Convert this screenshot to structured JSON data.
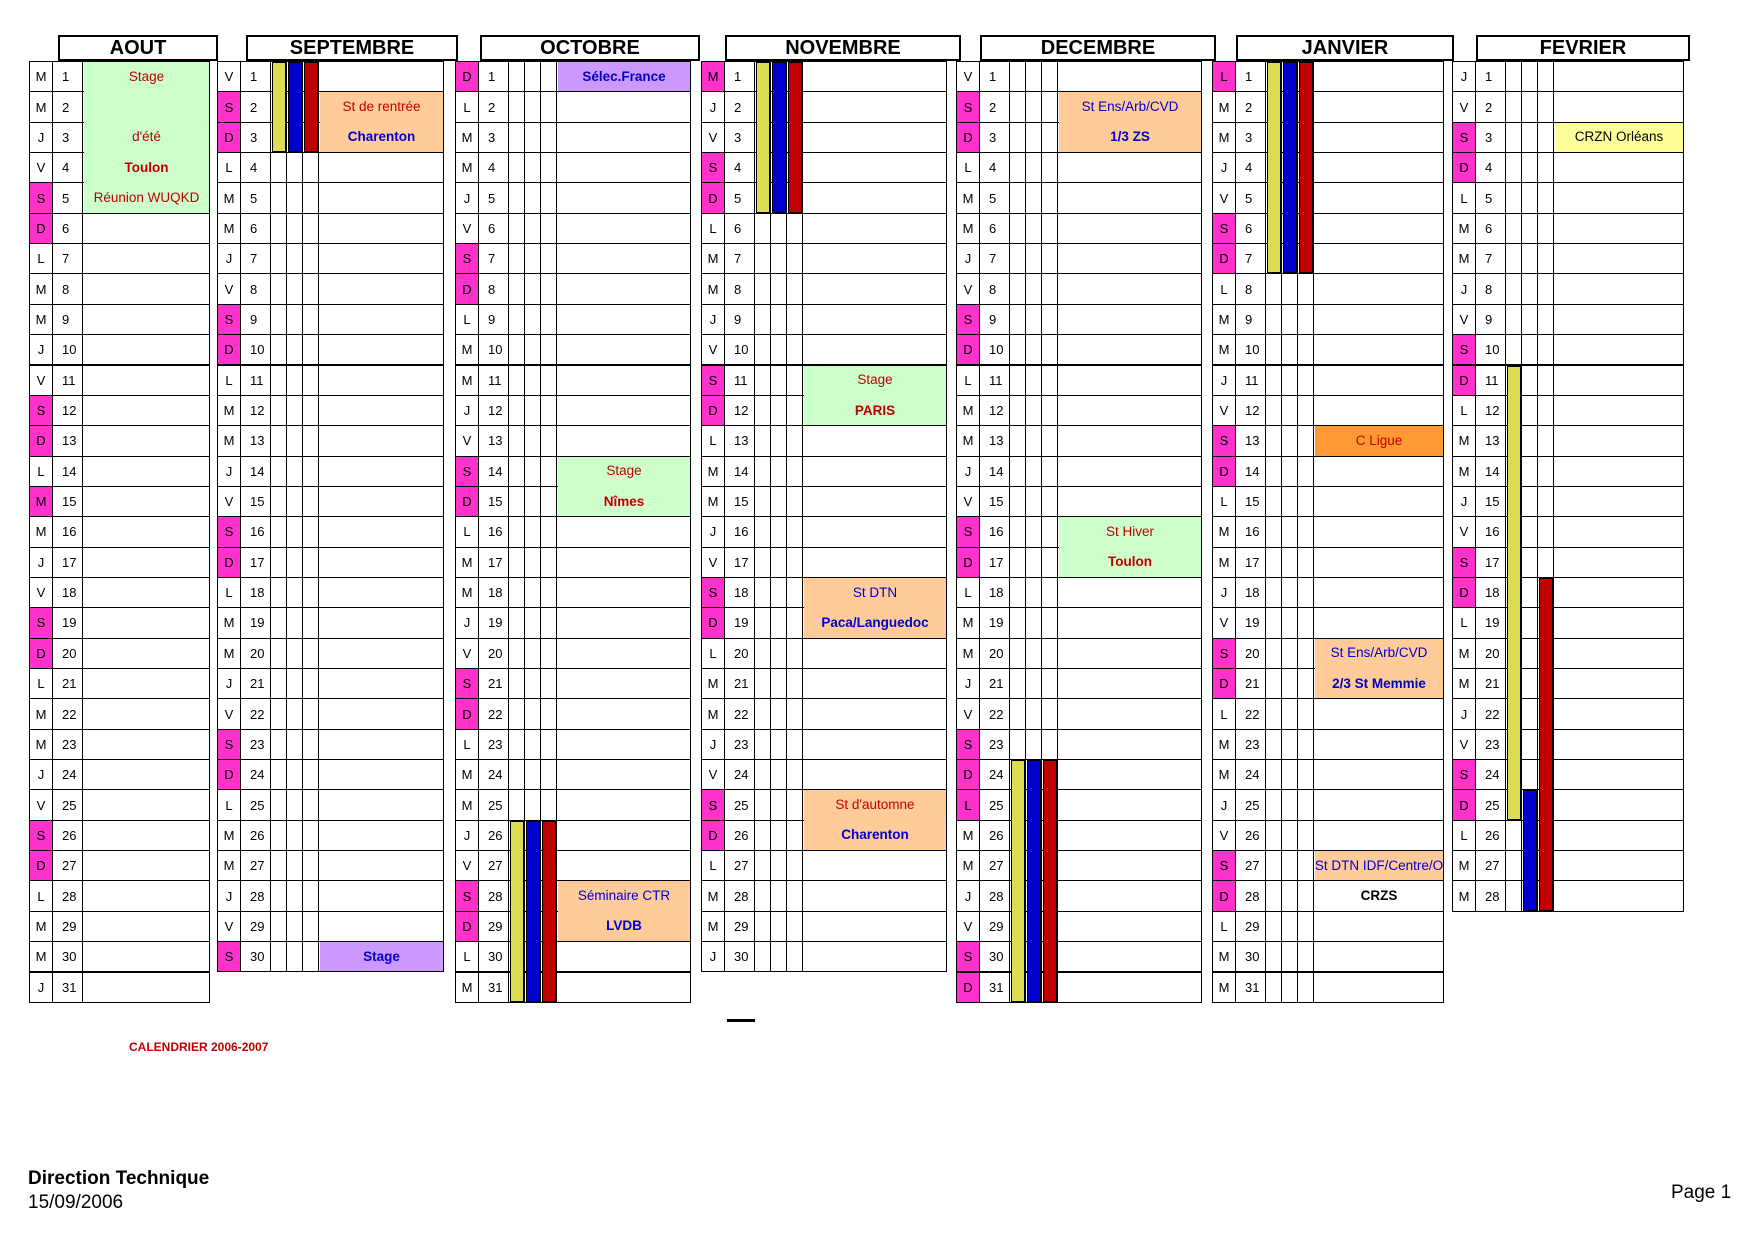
{
  "calendar_title": "CALENDRIER 2006-2007",
  "footer": {
    "org": "Direction Technique",
    "date": "15/09/2006",
    "page": "Page 1"
  },
  "colors": {
    "weekend": "#ff33cc",
    "green": "#ccffcc",
    "orange": "#ffcc99",
    "violet": "#cc99ff",
    "darkOrange": "#ff9933",
    "yellow": "#ffff99",
    "barYellow": "#dddd55",
    "barBlue": "#0000cc",
    "barRed": "#c00000"
  },
  "months": [
    {
      "name": "AOUT",
      "days": [
        "M",
        "M",
        "J",
        "V",
        "S",
        "D",
        "L",
        "M",
        "M",
        "J",
        "V",
        "S",
        "D",
        "L",
        "M",
        "M",
        "J",
        "V",
        "S",
        "D",
        "L",
        "M",
        "M",
        "J",
        "V",
        "S",
        "D",
        "L",
        "M",
        "M",
        "J"
      ]
    },
    {
      "name": "SEPTEMBRE",
      "days": [
        "V",
        "S",
        "D",
        "L",
        "M",
        "M",
        "J",
        "V",
        "S",
        "D",
        "L",
        "M",
        "M",
        "J",
        "V",
        "S",
        "D",
        "L",
        "M",
        "M",
        "J",
        "V",
        "S",
        "D",
        "L",
        "M",
        "M",
        "J",
        "V",
        "S"
      ]
    },
    {
      "name": "OCTOBRE",
      "days": [
        "D",
        "L",
        "M",
        "M",
        "J",
        "V",
        "S",
        "D",
        "L",
        "M",
        "M",
        "J",
        "V",
        "S",
        "D",
        "L",
        "M",
        "M",
        "J",
        "V",
        "S",
        "D",
        "L",
        "M",
        "M",
        "J",
        "V",
        "S",
        "D",
        "L",
        "M"
      ]
    },
    {
      "name": "NOVEMBRE",
      "days": [
        "M",
        "J",
        "V",
        "S",
        "D",
        "L",
        "M",
        "M",
        "J",
        "V",
        "S",
        "D",
        "L",
        "M",
        "M",
        "J",
        "V",
        "S",
        "D",
        "L",
        "M",
        "M",
        "J",
        "V",
        "S",
        "D",
        "L",
        "M",
        "M",
        "J"
      ]
    },
    {
      "name": "DECEMBRE",
      "days": [
        "V",
        "S",
        "D",
        "L",
        "M",
        "M",
        "J",
        "V",
        "S",
        "D",
        "L",
        "M",
        "M",
        "J",
        "V",
        "S",
        "D",
        "L",
        "M",
        "M",
        "J",
        "V",
        "S",
        "D",
        "L",
        "M",
        "M",
        "J",
        "V",
        "S",
        "D"
      ]
    },
    {
      "name": "JANVIER",
      "days": [
        "L",
        "M",
        "M",
        "J",
        "V",
        "S",
        "D",
        "L",
        "M",
        "M",
        "J",
        "V",
        "S",
        "D",
        "L",
        "M",
        "M",
        "J",
        "V",
        "S",
        "D",
        "L",
        "M",
        "M",
        "J",
        "V",
        "S",
        "D",
        "L",
        "M",
        "M"
      ]
    },
    {
      "name": "FEVRIER",
      "days": [
        "J",
        "V",
        "S",
        "D",
        "L",
        "M",
        "M",
        "J",
        "V",
        "S",
        "D",
        "L",
        "M",
        "M",
        "J",
        "V",
        "S",
        "D",
        "L",
        "M",
        "M",
        "J",
        "V",
        "S",
        "D",
        "L",
        "M",
        "M"
      ]
    }
  ],
  "highlighted_days": [
    {
      "month": 0,
      "days": [
        5,
        6,
        12,
        13,
        15,
        19,
        20,
        26,
        27
      ]
    },
    {
      "month": 1,
      "days": [
        2,
        3,
        9,
        10,
        16,
        17,
        23,
        24,
        30
      ]
    },
    {
      "month": 2,
      "days": [
        1,
        7,
        8,
        14,
        15,
        21,
        22,
        28,
        29
      ]
    },
    {
      "month": 3,
      "days": [
        1,
        4,
        5,
        11,
        12,
        18,
        19,
        25,
        26
      ]
    },
    {
      "month": 4,
      "days": [
        2,
        3,
        9,
        10,
        16,
        17,
        23,
        24,
        25,
        30,
        31
      ]
    },
    {
      "month": 5,
      "days": [
        1,
        6,
        7,
        13,
        14,
        20,
        21,
        27,
        28
      ]
    },
    {
      "month": 6,
      "days": [
        3,
        4,
        10,
        11,
        17,
        18,
        24,
        25
      ]
    }
  ],
  "events": [
    {
      "month": 0,
      "start": 1,
      "end": 5,
      "color": "green",
      "lines": [
        {
          "day": 1,
          "text": "Stage",
          "bold": false,
          "color": "#c00000"
        },
        {
          "day": 3,
          "text": "d'été",
          "bold": false,
          "color": "#c00000"
        },
        {
          "day": 4,
          "text": "Toulon",
          "bold": true,
          "color": "#c00000"
        },
        {
          "day": 5,
          "text": "Réunion WUQKD",
          "bold": false,
          "color": "#c00000"
        }
      ]
    },
    {
      "month": 1,
      "start": 2,
      "end": 3,
      "color": "orange",
      "lines": [
        {
          "day": 2,
          "text": "St de rentrée",
          "bold": false,
          "color": "#c00000"
        },
        {
          "day": 3,
          "text": "Charenton",
          "bold": true,
          "color": "#0000cc"
        }
      ]
    },
    {
      "month": 1,
      "start": 30,
      "end": 30,
      "color": "violet",
      "lines": [
        {
          "day": 30,
          "text": "Stage",
          "bold": true,
          "color": "#0000cc"
        }
      ]
    },
    {
      "month": 2,
      "start": 1,
      "end": 1,
      "color": "violet",
      "lines": [
        {
          "day": 1,
          "text": "Sélec.France",
          "bold": true,
          "color": "#0000cc"
        }
      ]
    },
    {
      "month": 2,
      "start": 14,
      "end": 15,
      "color": "green",
      "lines": [
        {
          "day": 14,
          "text": "Stage",
          "bold": false,
          "color": "#c00000"
        },
        {
          "day": 15,
          "text": "Nîmes",
          "bold": true,
          "color": "#c00000"
        }
      ]
    },
    {
      "month": 2,
      "start": 28,
      "end": 29,
      "color": "orange",
      "lines": [
        {
          "day": 28,
          "text": "Séminaire CTR",
          "bold": false,
          "color": "#0000cc"
        },
        {
          "day": 29,
          "text": "LVDB",
          "bold": true,
          "color": "#0000cc"
        }
      ]
    },
    {
      "month": 3,
      "start": 11,
      "end": 12,
      "color": "green",
      "lines": [
        {
          "day": 11,
          "text": "Stage",
          "bold": false,
          "color": "#c00000"
        },
        {
          "day": 12,
          "text": "PARIS",
          "bold": true,
          "color": "#c00000"
        }
      ]
    },
    {
      "month": 3,
      "start": 18,
      "end": 19,
      "color": "orange",
      "lines": [
        {
          "day": 18,
          "text": "St DTN",
          "bold": false,
          "color": "#0000cc"
        },
        {
          "day": 19,
          "text": "Paca/Languedoc",
          "bold": true,
          "color": "#0000cc"
        }
      ]
    },
    {
      "month": 3,
      "start": 25,
      "end": 26,
      "color": "orange",
      "lines": [
        {
          "day": 25,
          "text": "St d'automne",
          "bold": false,
          "color": "#c00000"
        },
        {
          "day": 26,
          "text": "Charenton",
          "bold": true,
          "color": "#0000cc"
        }
      ]
    },
    {
      "month": 4,
      "start": 2,
      "end": 3,
      "color": "orange",
      "lines": [
        {
          "day": 2,
          "text": "St Ens/Arb/CVD",
          "bold": false,
          "color": "#0000cc"
        },
        {
          "day": 3,
          "text": "1/3 ZS",
          "bold": true,
          "color": "#0000cc"
        }
      ]
    },
    {
      "month": 4,
      "start": 16,
      "end": 17,
      "color": "green",
      "lines": [
        {
          "day": 16,
          "text": "St Hiver",
          "bold": false,
          "color": "#c00000"
        },
        {
          "day": 17,
          "text": "Toulon",
          "bold": true,
          "color": "#c00000"
        }
      ]
    },
    {
      "month": 5,
      "start": 13,
      "end": 13,
      "color": "darkOrange",
      "lines": [
        {
          "day": 13,
          "text": "C Ligue",
          "bold": false,
          "color": "#c00000"
        }
      ]
    },
    {
      "month": 5,
      "start": 20,
      "end": 21,
      "color": "orange",
      "lines": [
        {
          "day": 20,
          "text": "St Ens/Arb/CVD",
          "bold": false,
          "color": "#0000cc"
        },
        {
          "day": 21,
          "text": "2/3 St Memmie",
          "bold": true,
          "color": "#0000cc"
        }
      ]
    },
    {
      "month": 5,
      "start": 27,
      "end": 27,
      "color": "orange",
      "lines": [
        {
          "day": 27,
          "text": "St DTN IDF/Centre/O",
          "bold": false,
          "color": "#0000cc"
        }
      ]
    },
    {
      "month": 5,
      "start": 28,
      "end": 28,
      "color": "none",
      "lines": [
        {
          "day": 28,
          "text": "CRZS",
          "bold": true,
          "color": "#000000"
        }
      ]
    },
    {
      "month": 6,
      "start": 3,
      "end": 3,
      "color": "yellow",
      "lines": [
        {
          "day": 3,
          "text": "CRZN Orléans",
          "bold": false,
          "color": "#000000",
          "boldPart": "Orléans"
        }
      ]
    }
  ],
  "period_bars": [
    {
      "month": 1,
      "start": 1,
      "end": 3,
      "col": 0,
      "color": "barYellow"
    },
    {
      "month": 1,
      "start": 1,
      "end": 3,
      "col": 1,
      "color": "barBlue"
    },
    {
      "month": 1,
      "start": 1,
      "end": 3,
      "col": 2,
      "color": "barRed"
    },
    {
      "month": 2,
      "start": 26,
      "end": 31,
      "col": 0,
      "color": "barYellow"
    },
    {
      "month": 2,
      "start": 26,
      "end": 31,
      "col": 1,
      "color": "barBlue"
    },
    {
      "month": 2,
      "start": 26,
      "end": 31,
      "col": 2,
      "color": "barRed"
    },
    {
      "month": 3,
      "start": 1,
      "end": 5,
      "col": 0,
      "color": "barYellow"
    },
    {
      "month": 3,
      "start": 1,
      "end": 5,
      "col": 1,
      "color": "barBlue"
    },
    {
      "month": 3,
      "start": 1,
      "end": 5,
      "col": 2,
      "color": "barRed"
    },
    {
      "month": 4,
      "start": 24,
      "end": 31,
      "col": 0,
      "color": "barYellow"
    },
    {
      "month": 4,
      "start": 24,
      "end": 31,
      "col": 1,
      "color": "barBlue"
    },
    {
      "month": 4,
      "start": 24,
      "end": 31,
      "col": 2,
      "color": "barRed"
    },
    {
      "month": 5,
      "start": 1,
      "end": 7,
      "col": 0,
      "color": "barYellow"
    },
    {
      "month": 5,
      "start": 1,
      "end": 7,
      "col": 1,
      "color": "barBlue"
    },
    {
      "month": 5,
      "start": 1,
      "end": 7,
      "col": 2,
      "color": "barRed"
    },
    {
      "month": 6,
      "start": 11,
      "end": 25,
      "col": 0,
      "color": "barYellow"
    },
    {
      "month": 6,
      "start": 25,
      "end": 28,
      "col": 1,
      "color": "barBlue"
    },
    {
      "month": 6,
      "start": 18,
      "end": 28,
      "col": 2,
      "color": "barRed"
    }
  ]
}
